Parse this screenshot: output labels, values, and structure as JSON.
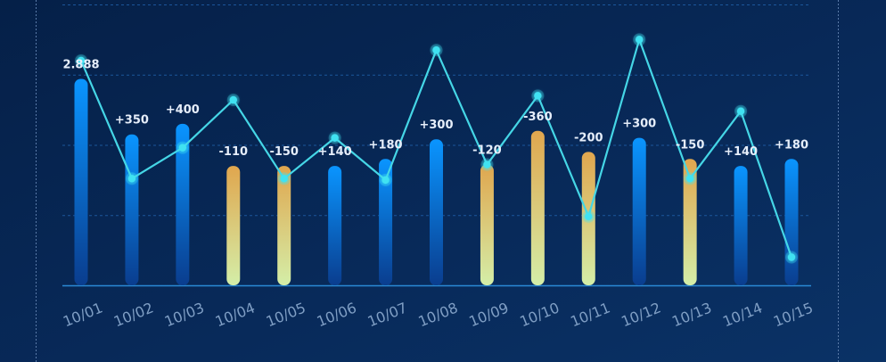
{
  "chart_data": {
    "type": "bar",
    "categories": [
      "10/01",
      "10/02",
      "10/03",
      "10/04",
      "10/05",
      "10/06",
      "10/07",
      "10/08",
      "10/09",
      "10/10",
      "10/11",
      "10/12",
      "10/13",
      "10/14",
      "10/15"
    ],
    "bar_values": [
      2.94,
      2.15,
      2.3,
      1.7,
      1.7,
      1.7,
      1.8,
      2.08,
      1.72,
      2.2,
      1.9,
      2.1,
      1.8,
      1.7,
      1.8
    ],
    "bar_labels": [
      "2.888",
      "+350",
      "+400",
      "-110",
      "-150",
      "+140",
      "+180",
      "+300",
      "-120",
      "-360",
      "-200",
      "+300",
      "-150",
      "+140",
      "+180"
    ],
    "bar_kind": [
      "up",
      "up",
      "up",
      "down",
      "down",
      "up",
      "up",
      "up",
      "down",
      "down",
      "down",
      "up",
      "down",
      "up",
      "up"
    ],
    "line_values": [
      3.2,
      1.52,
      1.96,
      2.64,
      1.52,
      2.1,
      1.5,
      3.35,
      1.72,
      2.7,
      0.98,
      3.5,
      1.52,
      2.48,
      0.4
    ],
    "ylim": [
      0,
      4
    ],
    "grid": true,
    "colors": {
      "background": "#06214a",
      "grid": "#1f5fa8",
      "axis": "#2a8ad6",
      "up_bar_top": "#0a95ff",
      "up_bar_bottom": "#0a3d8e",
      "down_bar_top": "#e0a64e",
      "down_bar_bottom": "#d4eea8",
      "line": "#45d6e6",
      "marker": "#3fe2f2",
      "label": "#e6eefa",
      "tick": "#7f9ec4"
    }
  }
}
